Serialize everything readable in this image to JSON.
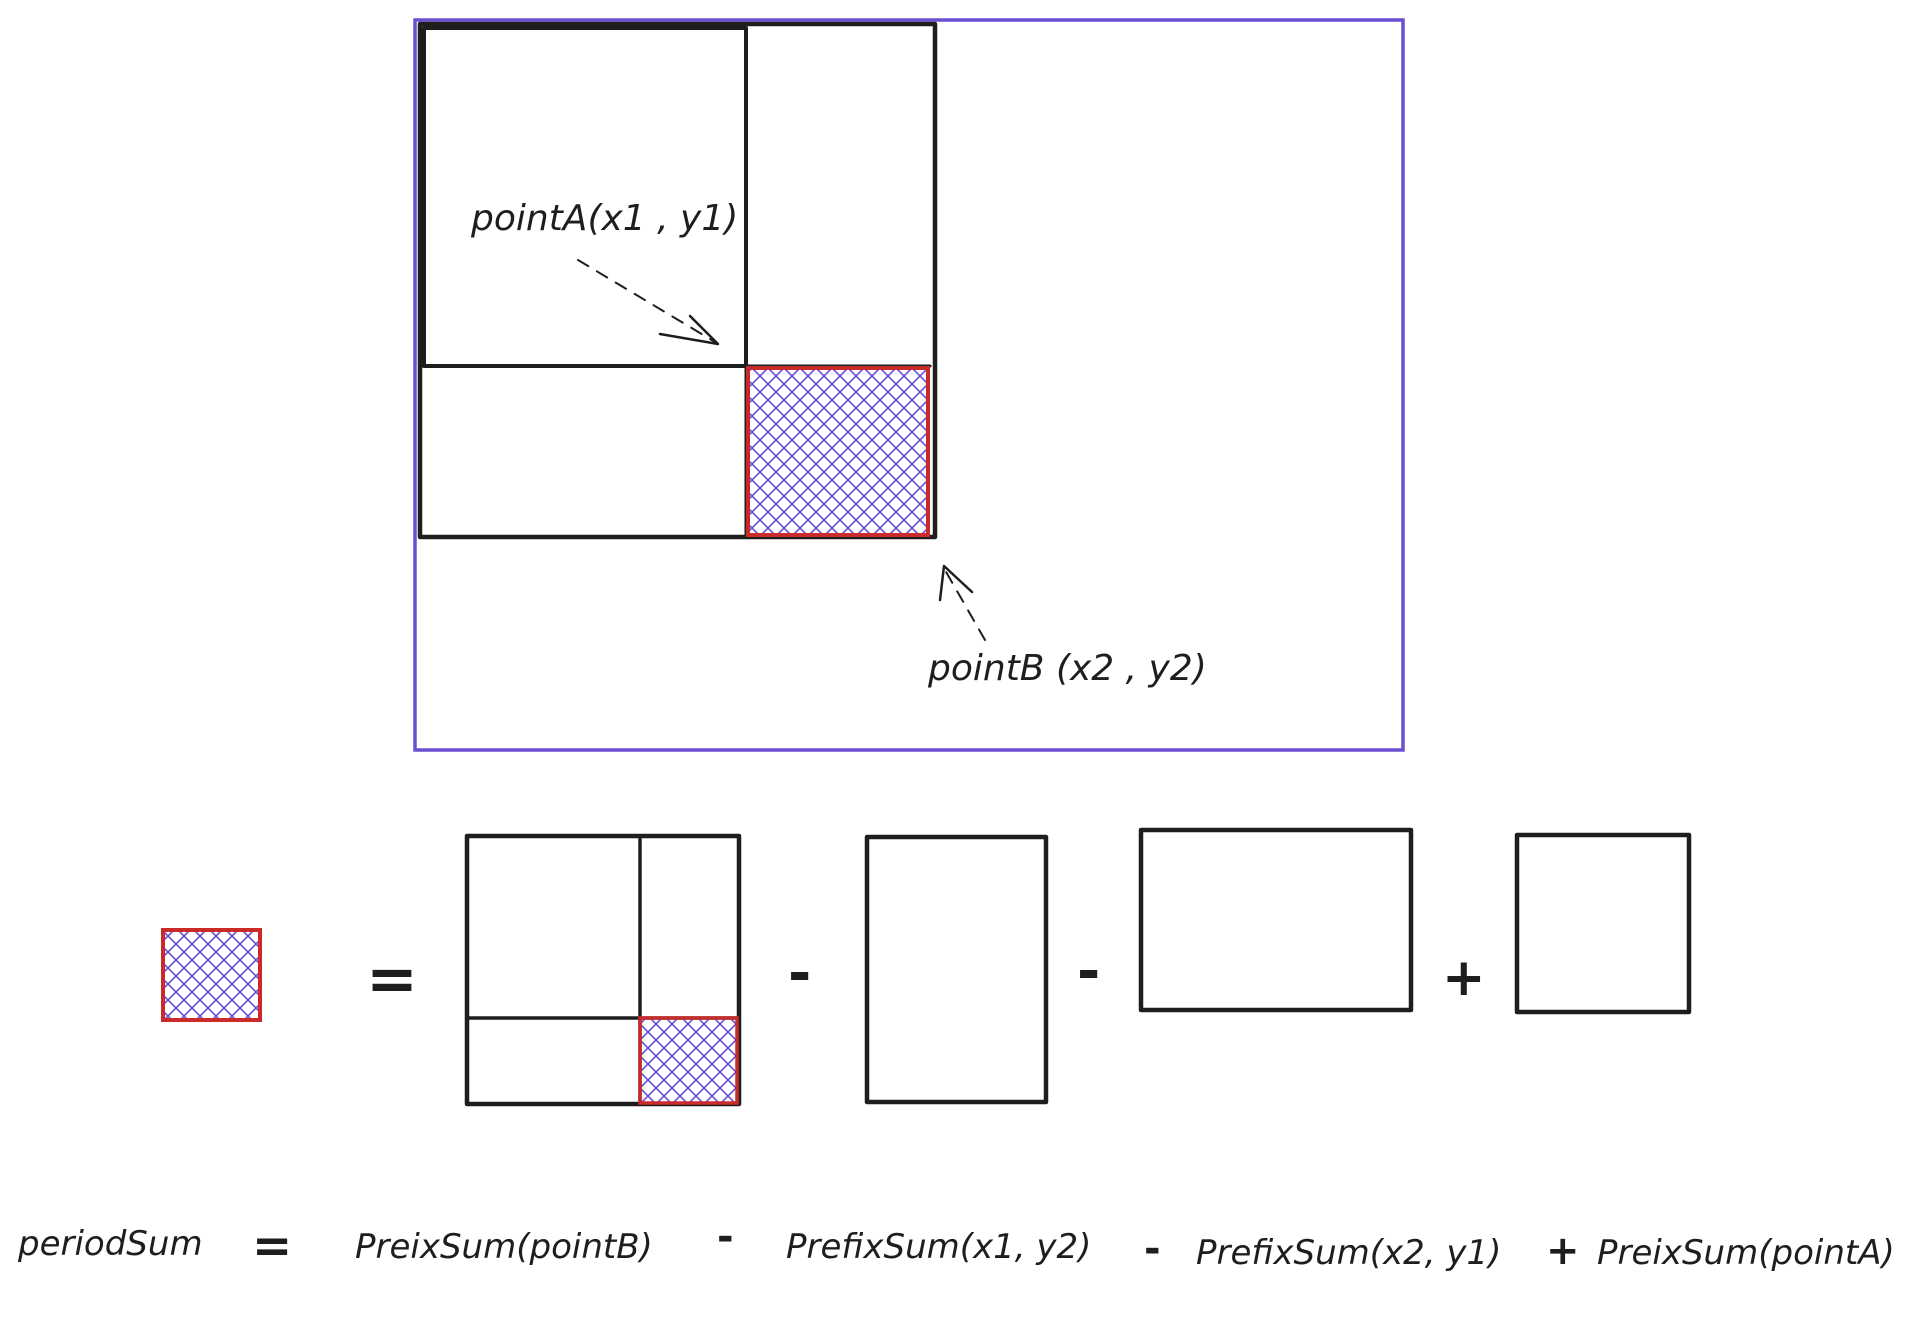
{
  "colors": {
    "ink": "#1e1e1e",
    "frame": "#6a4fd3",
    "highlight_border": "#c92a2a",
    "hatch": "#6a4fd3",
    "background": "#ffffff"
  },
  "top_diagram": {
    "point_a_label": "pointA(x1 , y1)",
    "point_b_label": "pointB (x2 , y2)"
  },
  "equation_diagram": {
    "equals": "=",
    "minus_1": "-",
    "minus_2": "-",
    "plus": "+"
  },
  "formula": {
    "lhs": "periodSum",
    "equals": "=",
    "term_1": "PreixSum(pointB)",
    "op_1": "-",
    "term_2": "PrefixSum(x1, y2)",
    "op_2": "-",
    "term_3": "PrefixSum(x2, y1)",
    "op_3": "+",
    "term_4": "PreixSum(pointA)"
  }
}
